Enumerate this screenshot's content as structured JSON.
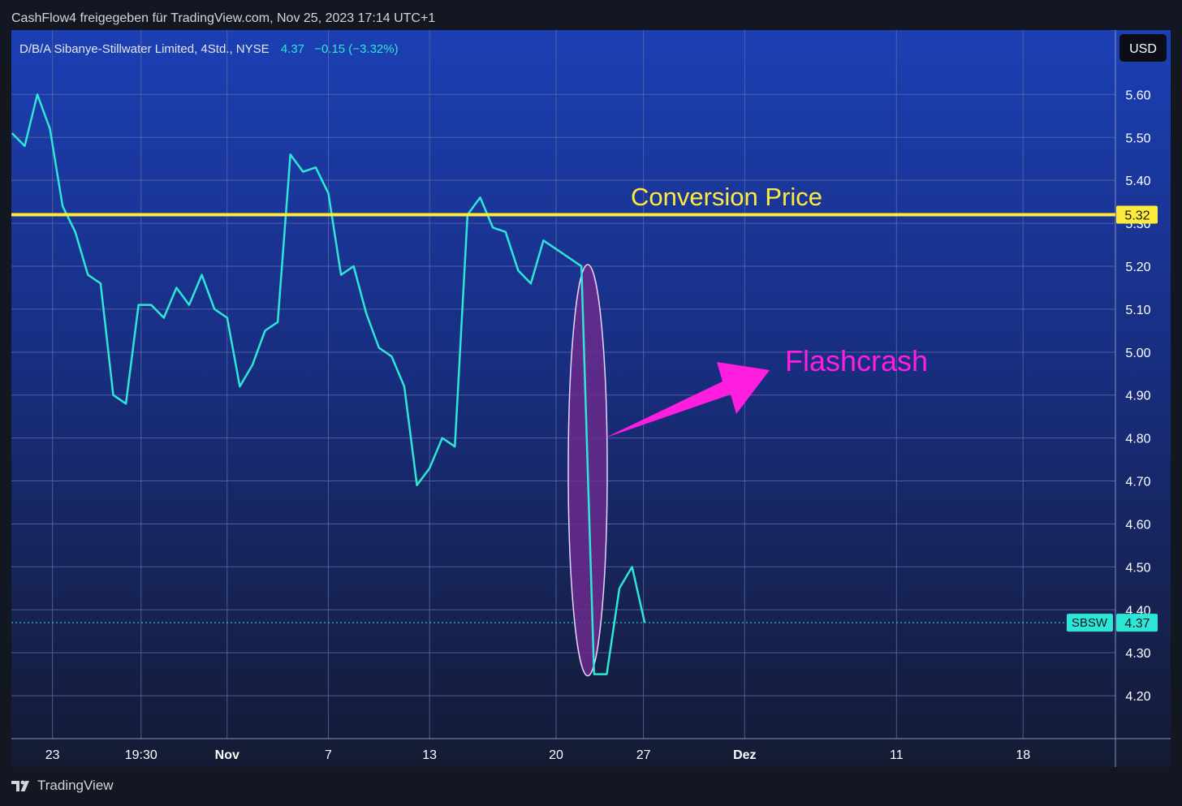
{
  "header": {
    "shared_by": "CashFlow4 freigegeben für TradingView.com, Nov 25, 2023 17:14 UTC+1"
  },
  "legend": {
    "symbol_line": "D/B/A Sibanye-Stillwater Limited, 4Std., NYSE",
    "last": "4.37",
    "change": "−0.15 (−3.32%)"
  },
  "currency_button": "USD",
  "footer": {
    "brand": "TradingView"
  },
  "colors": {
    "series": "#2ee6d6",
    "conversion_line": "#ffeb3b",
    "annotation_text": "#ff1de0",
    "ellipse_fill": "#6a2a8c",
    "grid": "#5a6aa8"
  },
  "chart_data": {
    "type": "line",
    "ticker": "SBSW",
    "ylim": [
      4.1,
      5.75
    ],
    "y_ticks": [
      "5.60",
      "5.50",
      "5.40",
      "5.30",
      "5.20",
      "5.10",
      "5.00",
      "4.90",
      "4.80",
      "4.70",
      "4.60",
      "4.50",
      "4.40",
      "4.30",
      "4.20"
    ],
    "x_ticks": [
      {
        "label": "23",
        "idx": 3.2,
        "bold": false
      },
      {
        "label": "19:30",
        "idx": 10.2,
        "bold": false
      },
      {
        "label": "Nov",
        "idx": 17.0,
        "bold": true
      },
      {
        "label": "7",
        "idx": 25.0,
        "bold": false
      },
      {
        "label": "13",
        "idx": 33.0,
        "bold": false
      },
      {
        "label": "20",
        "idx": 43.0,
        "bold": false
      },
      {
        "label": "27",
        "idx": 49.9,
        "bold": false
      },
      {
        "label": "Dez",
        "idx": 57.9,
        "bold": true
      },
      {
        "label": "11",
        "idx": 69.9,
        "bold": false
      },
      {
        "label": "18",
        "idx": 79.9,
        "bold": false
      }
    ],
    "x_range": [
      -0.05,
      87.2
    ],
    "values": [
      5.51,
      5.48,
      5.6,
      5.52,
      5.34,
      5.28,
      5.18,
      5.16,
      4.9,
      4.88,
      5.11,
      5.11,
      5.08,
      5.15,
      5.11,
      5.18,
      5.1,
      5.08,
      4.92,
      4.97,
      5.05,
      5.07,
      5.46,
      5.42,
      5.43,
      5.37,
      5.18,
      5.2,
      5.09,
      5.01,
      4.99,
      4.92,
      4.69,
      4.73,
      4.8,
      4.78,
      5.32,
      5.36,
      5.29,
      5.28,
      5.19,
      5.16,
      5.26,
      5.24,
      5.22,
      5.2,
      4.25,
      4.25,
      4.45,
      4.5,
      4.37
    ],
    "last_value": "4.37",
    "conversion_price": {
      "label": "Conversion Price",
      "value": "5.32"
    },
    "flashcrash": {
      "label": "Flashcrash",
      "from_idx": 45,
      "to_idx": 46
    }
  }
}
